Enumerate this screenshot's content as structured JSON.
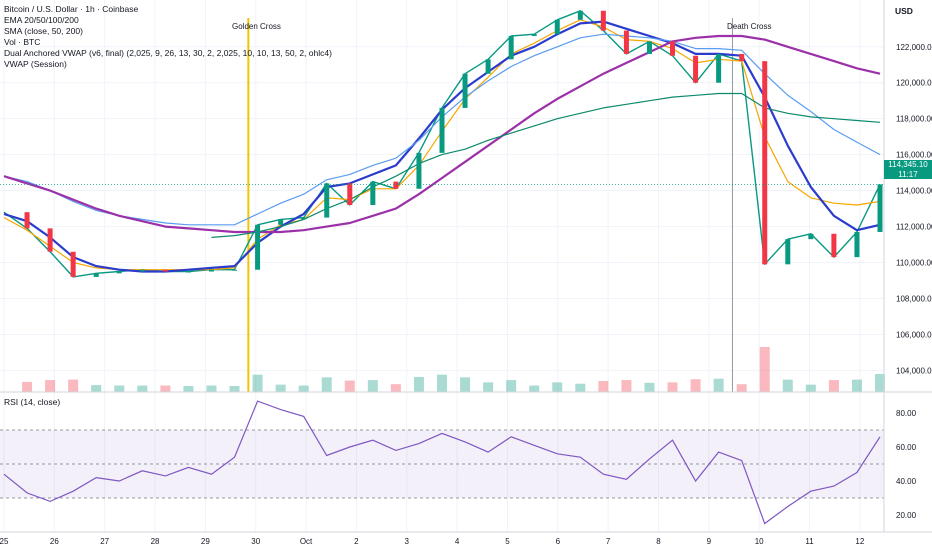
{
  "legend": {
    "title": "Bitcoin / U.S. Dollar · 1h · Coinbase",
    "ema": "EMA 20/50/100/200",
    "sma": "SMA (close, 50, 200)",
    "vol": "Vol · BTC",
    "dual_vwap": "Dual Anchored VWAP (v6, final) (2,025, 9, 26, 13, 30, 2, 2,025, 10, 10, 13, 50, 2, ohlc4)",
    "vwap": "VWAP (Session)"
  },
  "rsi_legend": "RSI (14, close)",
  "currency": "USD",
  "last_price": "114,345.10",
  "countdown": "11:17",
  "annotations": {
    "golden_cross": "Golden Cross",
    "death_cross": "Death Cross"
  },
  "colors": {
    "up": "#089981",
    "down": "#f23645",
    "ema20": "#f7a600",
    "sma50": "#2b3bcc",
    "sma200": "#9b30a8",
    "vwap": "#0c8a6b",
    "rsi": "#7e57c2",
    "golden_line": "#f5c400"
  },
  "chart_data": [
    {
      "type": "line",
      "title": "Bitcoin / U.S. Dollar · 1h · Coinbase",
      "xlabel": "",
      "ylabel": "USD",
      "x_ticks": [
        "25",
        "26",
        "27",
        "28",
        "29",
        "30",
        "Oct",
        "2",
        "3",
        "4",
        "5",
        "6",
        "7",
        "8",
        "9",
        "10",
        "11",
        "12"
      ],
      "y_ticks": [
        104000,
        106000,
        108000,
        110000,
        112000,
        114000,
        116000,
        118000,
        120000,
        122000
      ],
      "ylim": [
        102800,
        124600
      ],
      "series": [
        {
          "name": "Price (close)",
          "color": "#089981",
          "values": [
            112800,
            111900,
            110600,
            109200,
            109400,
            109500,
            109600,
            109500,
            109500,
            109600,
            109600,
            112100,
            112400,
            112500,
            114400,
            113200,
            114500,
            114100,
            116100,
            118600,
            120500,
            121300,
            122600,
            122700,
            123500,
            124000,
            122900,
            121600,
            122300,
            121500,
            120000,
            121600,
            121200,
            109900,
            111300,
            111600,
            110300,
            111700,
            114345
          ]
        },
        {
          "name": "EMA 20",
          "color": "#f7a600",
          "values": [
            112500,
            111800,
            110900,
            110000,
            109700,
            109600,
            109600,
            109600,
            109600,
            109600,
            109700,
            111300,
            112100,
            112400,
            113600,
            113500,
            114100,
            114100,
            115400,
            117300,
            119100,
            120300,
            121600,
            122200,
            122900,
            123500,
            123100,
            122400,
            122300,
            121900,
            121100,
            121300,
            121200,
            117000,
            114500,
            113600,
            113300,
            113200,
            113400
          ]
        },
        {
          "name": "SMA 50",
          "color": "#2b3bcc",
          "values": [
            112700,
            112300,
            111400,
            110300,
            109800,
            109600,
            109500,
            109500,
            109600,
            109700,
            109800,
            111100,
            112000,
            112700,
            114200,
            114400,
            114900,
            115400,
            116900,
            118500,
            119700,
            120600,
            121500,
            122000,
            122700,
            123300,
            123400,
            123000,
            122600,
            122200,
            121600,
            121600,
            121500,
            119200,
            116500,
            114200,
            112600,
            111800,
            112100
          ]
        },
        {
          "name": "EMA 100",
          "color": "#5a9cf0",
          "values": [
            114800,
            114500,
            114000,
            113400,
            112900,
            112600,
            112400,
            112200,
            112100,
            112100,
            112100,
            112700,
            113300,
            113800,
            114600,
            114900,
            115400,
            115800,
            116800,
            118100,
            119200,
            120100,
            120900,
            121500,
            122000,
            122500,
            122700,
            122600,
            122500,
            122300,
            121900,
            121900,
            121800,
            120500,
            119300,
            118400,
            117400,
            116700,
            116000
          ]
        },
        {
          "name": "SMA 200",
          "color": "#9b30a8",
          "values": [
            114800,
            114400,
            114000,
            113500,
            113000,
            112600,
            112300,
            112000,
            111900,
            111800,
            111700,
            111700,
            111700,
            111800,
            112000,
            112200,
            112600,
            113000,
            113800,
            114700,
            115600,
            116500,
            117400,
            118300,
            119100,
            119800,
            120500,
            121100,
            121700,
            122300,
            122500,
            122600,
            122600,
            122400,
            122000,
            121600,
            121200,
            120800,
            120500
          ]
        },
        {
          "name": "VWAP (anchored)",
          "color": "#0c8a6b",
          "values": [
            null,
            null,
            null,
            null,
            null,
            null,
            null,
            null,
            null,
            111400,
            111500,
            111700,
            112000,
            112400,
            113000,
            113500,
            114200,
            114800,
            115500,
            116000,
            116300,
            116800,
            117200,
            117600,
            118000,
            118300,
            118600,
            118800,
            119000,
            119200,
            119300,
            119400,
            119400,
            118600,
            118300,
            118100,
            118000,
            117900,
            117800
          ]
        }
      ]
    },
    {
      "type": "line",
      "title": "RSI (14, close)",
      "xlabel": "",
      "ylabel": "",
      "y_ticks": [
        20,
        40,
        60,
        80
      ],
      "ylim": [
        10,
        90
      ],
      "bands": {
        "upper": 70,
        "middle": 50,
        "lower": 30
      },
      "series": [
        {
          "name": "RSI",
          "color": "#7e57c2",
          "values": [
            44,
            33,
            28,
            34,
            42,
            40,
            46,
            43,
            48,
            44,
            54,
            87,
            82,
            78,
            55,
            60,
            64,
            58,
            62,
            68,
            63,
            57,
            66,
            61,
            56,
            54,
            44,
            41,
            53,
            64,
            40,
            57,
            52,
            15,
            25,
            34,
            37,
            45,
            66
          ]
        }
      ]
    }
  ]
}
